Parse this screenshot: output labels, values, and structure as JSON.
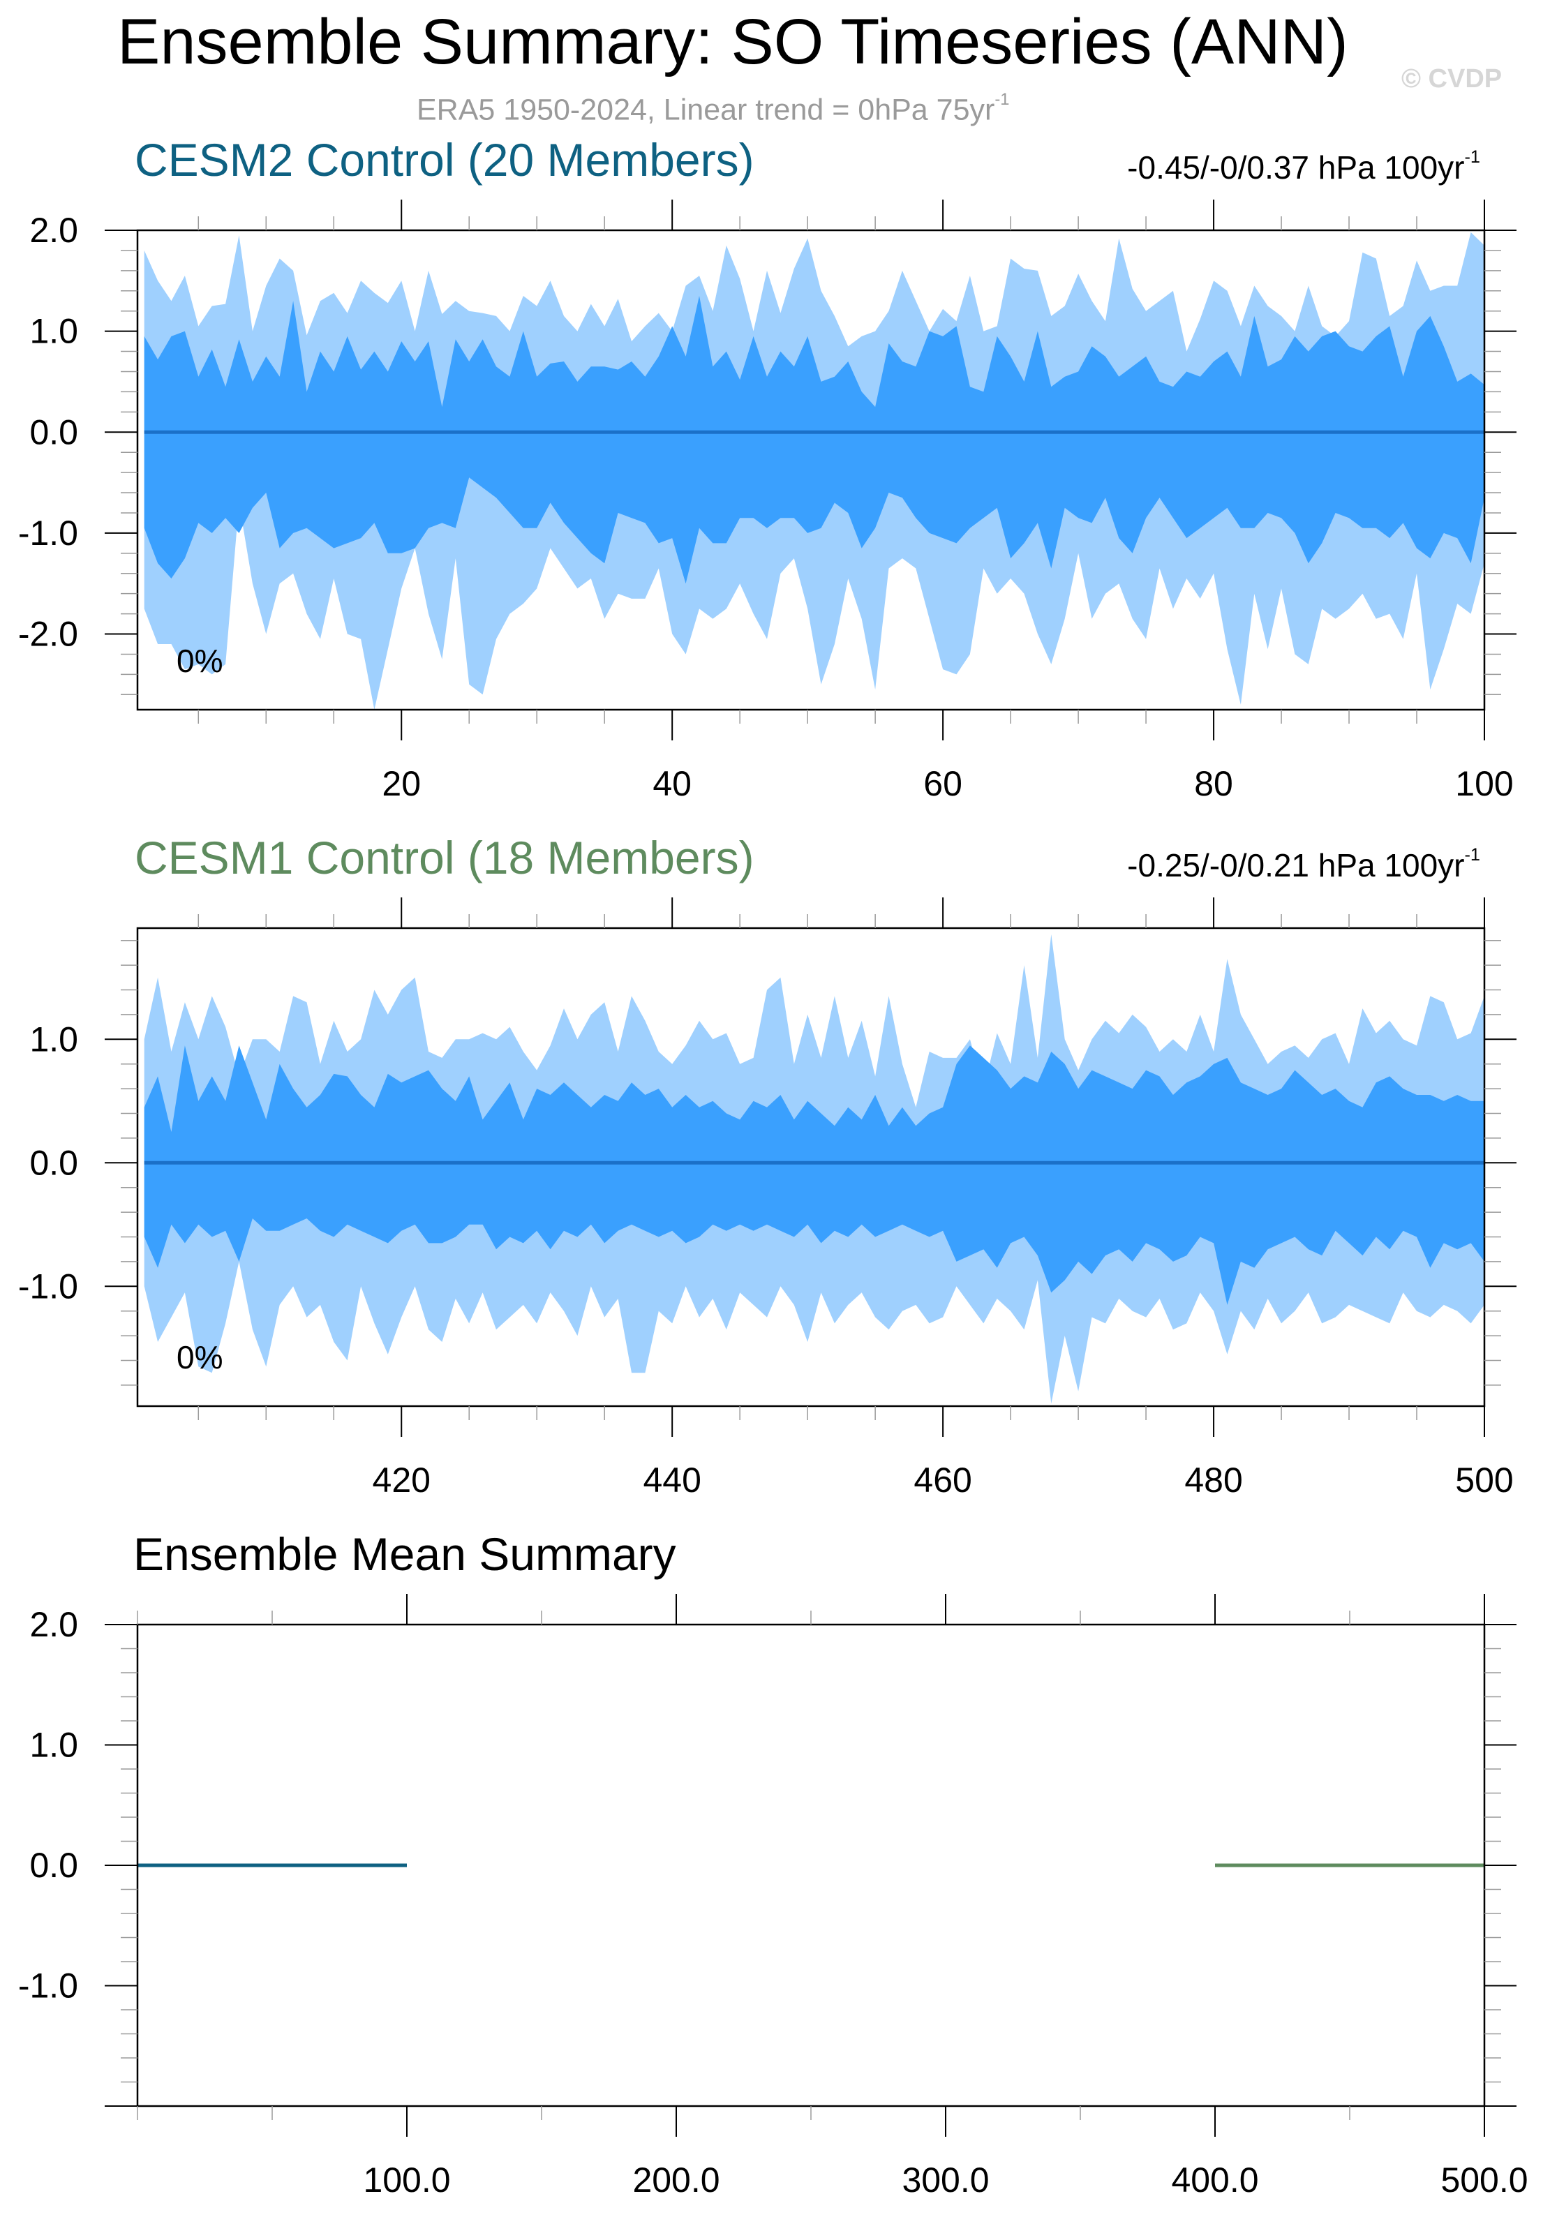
{
  "title": "Ensemble Summary: SO Timeseries (ANN)",
  "subtitle": {
    "text": "ERA5 1950-2024, Linear trend = 0hPa 75yr",
    "sup": "-1"
  },
  "watermark": "© CVDP",
  "colors": {
    "outer_band": "#9fd0fe",
    "inner_band": "#3aa0fe",
    "cesm2": "#0e6182",
    "cesm1": "#5e8b5e",
    "mean_line_panel": "#1a70c8",
    "axis": "#000000",
    "tick_minor": "#9a9a9a"
  },
  "chart_data": [
    {
      "type": "area",
      "name": "panel-cesm2",
      "title": "CESM2 Control (20 Members)",
      "title_color": "#0e6182",
      "trend_label": "-0.45/-0/0.37 hPa 100yr",
      "trend_sup": "-1",
      "percent_label": "0%",
      "x_start": 1,
      "x_end": 100,
      "xlim": [
        0.5,
        100
      ],
      "ylim": [
        -2.75,
        2.0
      ],
      "yticks": [
        2.0,
        1.0,
        0.0,
        -1.0,
        -2.0
      ],
      "ytick_labels": [
        "2.0",
        "1.0",
        "0.0",
        "-1.0",
        "-2.0"
      ],
      "xticks": [
        20,
        40,
        60,
        80,
        100
      ],
      "xtick_labels": [
        "20",
        "40",
        "60",
        "80",
        "100"
      ],
      "mean": 0.0,
      "outer_upper": [
        1.8,
        1.5,
        1.3,
        1.55,
        1.05,
        1.25,
        1.27,
        1.95,
        1.0,
        1.45,
        1.72,
        1.6,
        0.96,
        1.3,
        1.38,
        1.18,
        1.5,
        1.38,
        1.28,
        1.5,
        1.0,
        1.6,
        1.17,
        1.3,
        1.2,
        1.18,
        1.15,
        1.0,
        1.35,
        1.25,
        1.5,
        1.15,
        1.0,
        1.27,
        1.05,
        1.32,
        0.9,
        1.05,
        1.18,
        1.0,
        1.45,
        1.55,
        1.2,
        1.85,
        1.52,
        1.0,
        1.6,
        1.18,
        1.62,
        1.92,
        1.4,
        1.15,
        0.85,
        0.95,
        1.0,
        1.2,
        1.6,
        1.3,
        1.0,
        1.22,
        1.1,
        1.55,
        1.0,
        1.05,
        1.72,
        1.62,
        1.6,
        1.15,
        1.25,
        1.57,
        1.3,
        1.1,
        1.92,
        1.42,
        1.2,
        1.3,
        1.4,
        0.8,
        1.12,
        1.5,
        1.4,
        1.05,
        1.45,
        1.25,
        1.15,
        1.0,
        1.45,
        1.05,
        0.95,
        1.1,
        1.78,
        1.72,
        1.15,
        1.25,
        1.7,
        1.4,
        1.45,
        1.45,
        1.98,
        1.85
      ],
      "inner_upper": [
        0.95,
        0.72,
        0.95,
        1.0,
        0.55,
        0.82,
        0.45,
        0.92,
        0.5,
        0.75,
        0.55,
        1.3,
        0.4,
        0.8,
        0.6,
        0.95,
        0.62,
        0.8,
        0.6,
        0.9,
        0.7,
        0.9,
        0.25,
        0.92,
        0.7,
        0.92,
        0.65,
        0.55,
        1.0,
        0.55,
        0.68,
        0.7,
        0.5,
        0.65,
        0.65,
        0.62,
        0.7,
        0.55,
        0.75,
        1.05,
        0.75,
        1.35,
        0.65,
        0.8,
        0.52,
        0.95,
        0.55,
        0.8,
        0.65,
        0.95,
        0.5,
        0.55,
        0.7,
        0.4,
        0.25,
        0.88,
        0.7,
        0.65,
        1.0,
        0.95,
        1.05,
        0.45,
        0.4,
        0.95,
        0.75,
        0.5,
        1.0,
        0.45,
        0.55,
        0.6,
        0.85,
        0.75,
        0.55,
        0.65,
        0.75,
        0.5,
        0.45,
        0.6,
        0.55,
        0.7,
        0.8,
        0.55,
        1.15,
        0.65,
        0.72,
        0.95,
        0.8,
        0.95,
        1.0,
        0.85,
        0.8,
        0.95,
        1.05,
        0.55,
        1.0,
        1.15,
        0.85,
        0.5,
        0.58,
        0.47
      ],
      "inner_lower": [
        -0.95,
        -1.3,
        -1.45,
        -1.25,
        -0.9,
        -1.0,
        -0.85,
        -1.0,
        -0.75,
        -0.6,
        -1.15,
        -1.0,
        -0.95,
        -1.05,
        -1.15,
        -1.1,
        -1.05,
        -0.9,
        -1.2,
        -1.2,
        -1.15,
        -0.95,
        -0.9,
        -0.95,
        -0.45,
        -0.55,
        -0.65,
        -0.8,
        -0.95,
        -0.95,
        -0.7,
        -0.9,
        -1.05,
        -1.2,
        -1.3,
        -0.8,
        -0.85,
        -0.9,
        -1.1,
        -1.05,
        -1.5,
        -0.95,
        -1.1,
        -1.1,
        -0.85,
        -0.85,
        -0.95,
        -0.85,
        -0.85,
        -1.0,
        -0.95,
        -0.7,
        -0.8,
        -1.15,
        -0.95,
        -0.6,
        -0.65,
        -0.85,
        -1.0,
        -1.05,
        -1.1,
        -0.95,
        -0.85,
        -0.75,
        -1.25,
        -1.1,
        -0.9,
        -1.35,
        -0.75,
        -0.85,
        -0.9,
        -0.65,
        -1.05,
        -1.2,
        -0.85,
        -0.65,
        -0.85,
        -1.05,
        -0.95,
        -0.85,
        -0.75,
        -0.95,
        -0.95,
        -0.8,
        -0.85,
        -1.0,
        -1.3,
        -1.1,
        -0.8,
        -0.85,
        -0.95,
        -0.95,
        -1.05,
        -0.9,
        -1.15,
        -1.25,
        -1.0,
        -1.05,
        -1.3,
        -0.65
      ],
      "outer_lower": [
        -1.75,
        -2.1,
        -2.1,
        -2.35,
        -2.3,
        -2.4,
        -2.3,
        -0.7,
        -1.5,
        -2.0,
        -1.5,
        -1.4,
        -1.8,
        -2.05,
        -1.45,
        -2.0,
        -2.05,
        -2.75,
        -2.15,
        -1.55,
        -1.15,
        -1.8,
        -2.25,
        -1.25,
        -2.5,
        -2.6,
        -2.05,
        -1.8,
        -1.7,
        -1.55,
        -1.15,
        -1.35,
        -1.55,
        -1.45,
        -1.85,
        -1.6,
        -1.65,
        -1.65,
        -1.35,
        -2.0,
        -2.2,
        -1.75,
        -1.85,
        -1.75,
        -1.5,
        -1.8,
        -2.05,
        -1.4,
        -1.25,
        -1.75,
        -2.5,
        -2.1,
        -1.45,
        -1.85,
        -2.55,
        -1.35,
        -1.25,
        -1.35,
        -1.85,
        -2.35,
        -2.4,
        -2.2,
        -1.35,
        -1.6,
        -1.45,
        -1.6,
        -2.0,
        -2.3,
        -1.85,
        -1.2,
        -1.85,
        -1.6,
        -1.5,
        -1.85,
        -2.05,
        -1.35,
        -1.75,
        -1.45,
        -1.65,
        -1.4,
        -2.15,
        -2.7,
        -1.6,
        -2.15,
        -1.55,
        -2.2,
        -2.3,
        -1.75,
        -1.85,
        -1.75,
        -1.6,
        -1.85,
        -1.8,
        -2.05,
        -1.4,
        -2.55,
        -2.15,
        -1.7,
        -1.8,
        -1.3
      ]
    },
    {
      "type": "area",
      "name": "panel-cesm1",
      "title": "CESM1 Control (18 Members)",
      "title_color": "#5e8b5e",
      "trend_label": "-0.25/-0/0.21 hPa 100yr",
      "trend_sup": "-1",
      "percent_label": "0%",
      "x_start": 401,
      "x_end": 500,
      "xlim": [
        400.5,
        500
      ],
      "ylim": [
        -1.97,
        1.9
      ],
      "yticks": [
        1.0,
        0.0,
        -1.0
      ],
      "ytick_labels": [
        "1.0",
        "0.0",
        "-1.0"
      ],
      "xticks": [
        420,
        440,
        460,
        480,
        500
      ],
      "xtick_labels": [
        "420",
        "440",
        "460",
        "480",
        "500"
      ],
      "mean": 0.0,
      "outer_upper": [
        1.0,
        1.5,
        0.9,
        1.3,
        1.0,
        1.35,
        1.1,
        0.7,
        1.0,
        1.0,
        0.9,
        1.35,
        1.3,
        0.8,
        1.15,
        0.9,
        1.0,
        1.4,
        1.2,
        1.4,
        1.5,
        0.9,
        0.85,
        1.0,
        1.0,
        1.05,
        1.0,
        1.1,
        0.9,
        0.75,
        0.95,
        1.25,
        1.0,
        1.2,
        1.3,
        0.9,
        1.35,
        1.15,
        0.9,
        0.8,
        0.95,
        1.15,
        1.0,
        1.05,
        0.8,
        0.85,
        1.4,
        1.5,
        0.8,
        1.2,
        0.85,
        1.35,
        0.85,
        1.15,
        0.7,
        1.35,
        0.8,
        0.45,
        0.9,
        0.85,
        0.85,
        1.0,
        0.6,
        1.05,
        0.8,
        1.6,
        0.85,
        1.85,
        1.0,
        0.75,
        1.0,
        1.15,
        1.05,
        1.2,
        1.1,
        0.9,
        1.0,
        0.9,
        1.2,
        0.9,
        1.65,
        1.2,
        1.0,
        0.8,
        0.9,
        0.95,
        0.85,
        1.0,
        1.05,
        0.8,
        1.25,
        1.05,
        1.15,
        1.0,
        0.95,
        1.35,
        1.3,
        1.0,
        1.05,
        1.35
      ],
      "inner_upper": [
        0.45,
        0.7,
        0.25,
        0.95,
        0.5,
        0.7,
        0.5,
        0.95,
        0.65,
        0.35,
        0.8,
        0.6,
        0.45,
        0.55,
        0.72,
        0.7,
        0.55,
        0.45,
        0.72,
        0.65,
        0.7,
        0.75,
        0.6,
        0.5,
        0.7,
        0.35,
        0.5,
        0.65,
        0.35,
        0.6,
        0.55,
        0.65,
        0.55,
        0.45,
        0.55,
        0.5,
        0.65,
        0.55,
        0.6,
        0.45,
        0.55,
        0.45,
        0.5,
        0.4,
        0.35,
        0.5,
        0.45,
        0.55,
        0.35,
        0.5,
        0.4,
        0.3,
        0.45,
        0.35,
        0.55,
        0.3,
        0.45,
        0.3,
        0.4,
        0.45,
        0.8,
        0.95,
        0.85,
        0.75,
        0.6,
        0.7,
        0.65,
        0.9,
        0.8,
        0.6,
        0.75,
        0.7,
        0.65,
        0.6,
        0.75,
        0.7,
        0.55,
        0.65,
        0.7,
        0.8,
        0.85,
        0.65,
        0.6,
        0.55,
        0.6,
        0.75,
        0.65,
        0.55,
        0.6,
        0.5,
        0.45,
        0.65,
        0.7,
        0.6,
        0.55,
        0.55,
        0.5,
        0.55,
        0.5,
        0.5
      ],
      "inner_lower": [
        -0.6,
        -0.85,
        -0.5,
        -0.65,
        -0.5,
        -0.6,
        -0.55,
        -0.8,
        -0.45,
        -0.55,
        -0.55,
        -0.5,
        -0.45,
        -0.55,
        -0.6,
        -0.5,
        -0.55,
        -0.6,
        -0.65,
        -0.55,
        -0.5,
        -0.65,
        -0.65,
        -0.6,
        -0.5,
        -0.5,
        -0.7,
        -0.6,
        -0.65,
        -0.55,
        -0.7,
        -0.55,
        -0.6,
        -0.5,
        -0.65,
        -0.55,
        -0.5,
        -0.55,
        -0.6,
        -0.55,
        -0.65,
        -0.6,
        -0.5,
        -0.55,
        -0.5,
        -0.55,
        -0.5,
        -0.55,
        -0.6,
        -0.5,
        -0.65,
        -0.55,
        -0.6,
        -0.5,
        -0.6,
        -0.55,
        -0.5,
        -0.55,
        -0.6,
        -0.55,
        -0.8,
        -0.75,
        -0.7,
        -0.85,
        -0.65,
        -0.6,
        -0.75,
        -1.05,
        -0.95,
        -0.8,
        -0.9,
        -0.75,
        -0.7,
        -0.8,
        -0.65,
        -0.7,
        -0.8,
        -0.75,
        -0.6,
        -0.65,
        -1.15,
        -0.8,
        -0.85,
        -0.7,
        -0.65,
        -0.6,
        -0.7,
        -0.75,
        -0.55,
        -0.65,
        -0.75,
        -0.6,
        -0.7,
        -0.55,
        -0.6,
        -0.85,
        -0.65,
        -0.7,
        -0.65,
        -0.8
      ],
      "outer_lower": [
        -1.0,
        -1.45,
        -1.25,
        -1.05,
        -1.65,
        -1.7,
        -1.3,
        -0.8,
        -1.35,
        -1.65,
        -1.15,
        -1.0,
        -1.25,
        -1.15,
        -1.45,
        -1.6,
        -1.0,
        -1.3,
        -1.55,
        -1.25,
        -1.0,
        -1.35,
        -1.45,
        -1.1,
        -1.3,
        -1.05,
        -1.35,
        -1.25,
        -1.15,
        -1.3,
        -1.05,
        -1.2,
        -1.4,
        -1.0,
        -1.25,
        -1.1,
        -1.7,
        -1.7,
        -1.2,
        -1.3,
        -1.0,
        -1.25,
        -1.1,
        -1.35,
        -1.05,
        -1.15,
        -1.25,
        -1.0,
        -1.15,
        -1.45,
        -1.05,
        -1.3,
        -1.15,
        -1.05,
        -1.25,
        -1.35,
        -1.2,
        -1.15,
        -1.3,
        -1.25,
        -1.0,
        -1.15,
        -1.3,
        -1.1,
        -1.2,
        -1.35,
        -0.95,
        -1.95,
        -1.4,
        -1.85,
        -1.25,
        -1.3,
        -1.1,
        -1.2,
        -1.25,
        -1.1,
        -1.35,
        -1.3,
        -1.05,
        -1.2,
        -1.55,
        -1.2,
        -1.35,
        -1.1,
        -1.3,
        -1.2,
        -1.05,
        -1.3,
        -1.25,
        -1.15,
        -1.2,
        -1.25,
        -1.3,
        -1.05,
        -1.2,
        -1.25,
        -1.15,
        -1.2,
        -1.3,
        -1.15
      ]
    },
    {
      "type": "line",
      "name": "panel-ensemble-mean",
      "title": "Ensemble Mean Summary",
      "title_color": "#000000",
      "xlim": [
        0,
        500
      ],
      "ylim": [
        -2.0,
        2.0
      ],
      "yticks": [
        2.0,
        1.0,
        0.0,
        -1.0
      ],
      "ytick_labels": [
        "2.0",
        "1.0",
        "0.0",
        "-1.0"
      ],
      "xticks": [
        100,
        200,
        300,
        400,
        500
      ],
      "xtick_labels": [
        "100.0",
        "200.0",
        "300.0",
        "400.0",
        "500.0"
      ],
      "series": [
        {
          "name": "CESM2 Control",
          "color": "#0e6182",
          "x": [
            0,
            100
          ],
          "y": [
            0.0,
            0.0
          ]
        },
        {
          "name": "CESM1 Control",
          "color": "#5e8b5e",
          "x": [
            400,
            500
          ],
          "y": [
            0.0,
            0.0
          ]
        }
      ]
    }
  ]
}
